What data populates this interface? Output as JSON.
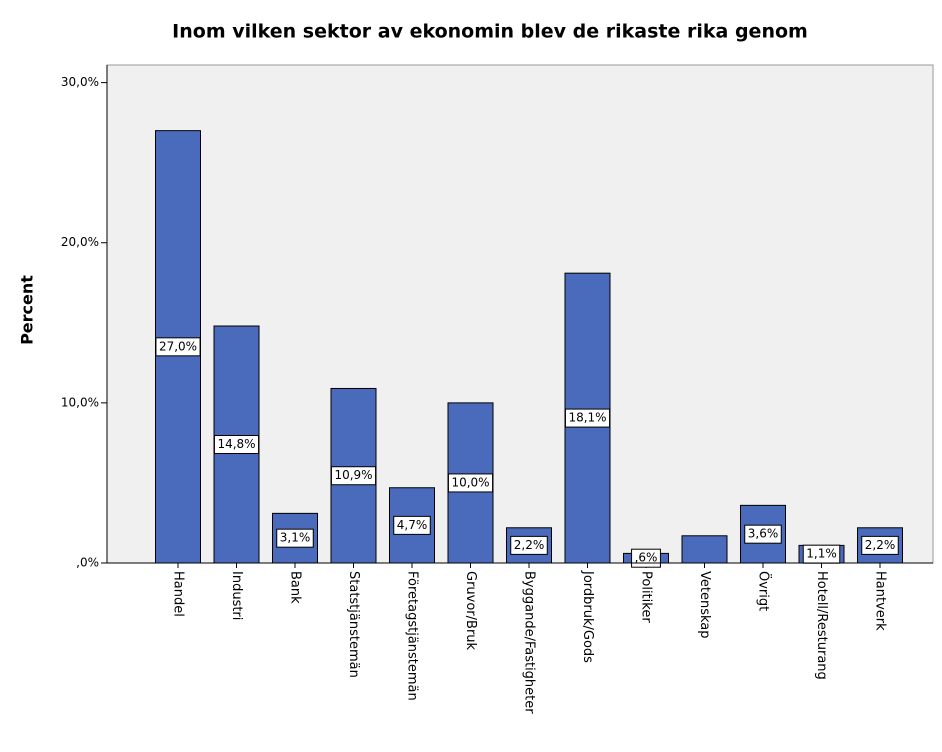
{
  "chart_data": {
    "type": "bar",
    "title": "Inom vilken sektor av ekonomin blev de rikaste rika genom",
    "ylabel": "Percent",
    "categories": [
      "Handel",
      "Industri",
      "Bank",
      "Statstjänstemän",
      "Företagstjänstemän",
      "Gruvor/Bruk",
      "Byggande/Fastigheter",
      "Jordbruk/Gods",
      "Politiker",
      "Vetenskap",
      "Övrigt",
      "Hotell/Resturang",
      "Hantverk"
    ],
    "values": [
      27.0,
      14.8,
      3.1,
      10.9,
      4.7,
      10.0,
      2.2,
      18.1,
      0.6,
      1.7,
      3.6,
      1.1,
      2.2
    ],
    "value_labels": [
      "27,0%",
      "14,8%",
      "3,1%",
      "10,9%",
      "4,7%",
      "10,0%",
      "2,2%",
      "18,1%",
      ",6%",
      null,
      "3,6%",
      "1,1%",
      "2,2%"
    ],
    "color": "#4a6abb",
    "ylim": [
      0,
      31.1
    ],
    "yticks": [
      {
        "value": 0,
        "label": ",0%"
      },
      {
        "value": 10,
        "label": "10,0%"
      },
      {
        "value": 20,
        "label": "20,0%"
      },
      {
        "value": 30,
        "label": "30,0%"
      }
    ],
    "grid": false
  }
}
